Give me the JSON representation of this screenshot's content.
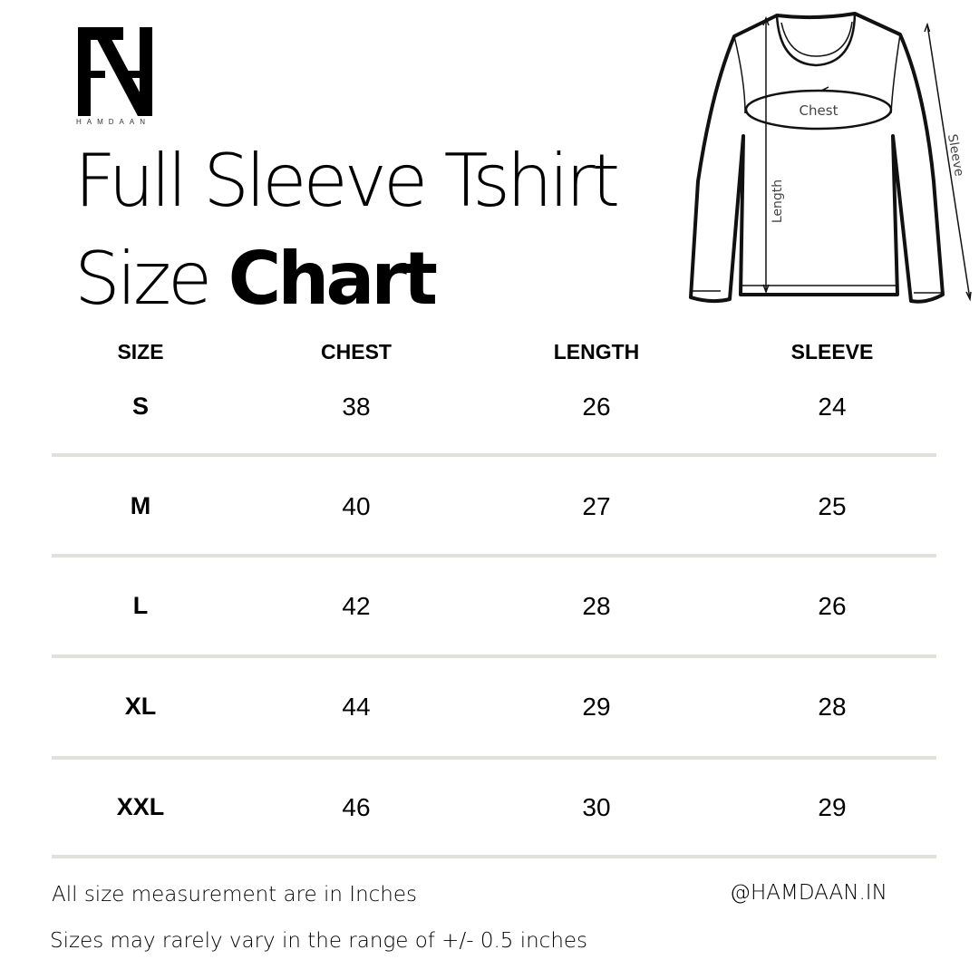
{
  "brand": {
    "logo_letters": "AH",
    "logo_name": "HAMDAAN"
  },
  "title": {
    "line1": "Full Sleeve Tshirt",
    "line2_regular": "Size ",
    "line2_bold": "Chart"
  },
  "diagram": {
    "chest_label": "Chest",
    "length_label": "Length",
    "sleeve_label": "Sleeve"
  },
  "table": {
    "headers": [
      "SIZE",
      "CHEST",
      "LENGTH",
      "SLEEVE"
    ],
    "rows": [
      [
        "S",
        "38",
        "26",
        "24"
      ],
      [
        "M",
        "40",
        "27",
        "25"
      ],
      [
        "L",
        "42",
        "28",
        "26"
      ],
      [
        "XL",
        "44",
        "29",
        "28"
      ],
      [
        "XXL",
        "46",
        "30",
        "29"
      ]
    ]
  },
  "footer": {
    "units_note": "All size measurement are in Inches",
    "handle": "@HAMDAAN.IN",
    "variance_note": "Sizes may rarely vary in the range of +/- 0.5 inches"
  },
  "colors": {
    "divider": "#e1e1db",
    "text": "#000000"
  }
}
